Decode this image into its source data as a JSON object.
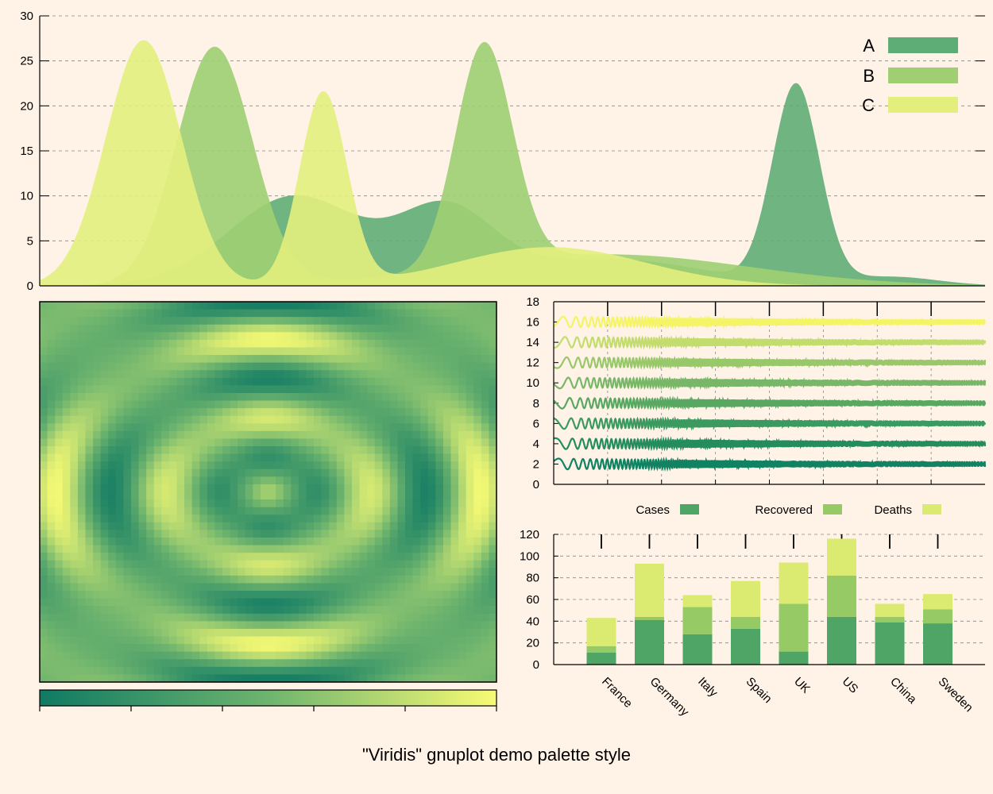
{
  "figure": {
    "title": "\"Viridis\" gnuplot demo palette style",
    "background": "#fff2e6"
  },
  "chart_data": [
    {
      "type": "area",
      "ylim": [
        0,
        30
      ],
      "yticks": [
        0,
        5,
        10,
        15,
        20,
        25,
        30
      ],
      "grid": true,
      "legend_position": "top-right",
      "series": [
        {
          "name": "A",
          "color": "#5fad76",
          "components": [
            {
              "mu": 0.27,
              "sigma": 0.07,
              "amp": 10
            },
            {
              "mu": 0.43,
              "sigma": 0.05,
              "amp": 8
            },
            {
              "mu": 0.6,
              "sigma": 0.1,
              "amp": 3
            },
            {
              "mu": 0.8,
              "sigma": 0.025,
              "amp": 22
            },
            {
              "mu": 0.9,
              "sigma": 0.05,
              "amp": 1
            }
          ]
        },
        {
          "name": "B",
          "color": "#9fcf72",
          "components": [
            {
              "mu": 0.185,
              "sigma": 0.04,
              "amp": 26.5
            },
            {
              "mu": 0.47,
              "sigma": 0.03,
              "amp": 24.7
            },
            {
              "mu": 0.6,
              "sigma": 0.15,
              "amp": 3.5
            }
          ]
        },
        {
          "name": "C",
          "color": "#e3ef7d",
          "components": [
            {
              "mu": 0.11,
              "sigma": 0.04,
              "amp": 27.3
            },
            {
              "mu": 0.3,
              "sigma": 0.025,
              "amp": 21.4
            },
            {
              "mu": 0.54,
              "sigma": 0.1,
              "amp": 4.3
            }
          ]
        }
      ]
    },
    {
      "type": "heatmap",
      "description": "radial ripple pattern z = cos(k*r), colors from dark teal to yellow",
      "colorbar": {
        "low_color": "#0f7a63",
        "high_color": "#f8fb74"
      }
    },
    {
      "type": "line",
      "ylim": [
        0,
        18
      ],
      "yticks": [
        0,
        2,
        4,
        6,
        8,
        10,
        12,
        14,
        16,
        18
      ],
      "grid": true,
      "series": [
        {
          "offset": 2,
          "color": "#118363"
        },
        {
          "offset": 4,
          "color": "#248d5e"
        },
        {
          "offset": 6,
          "color": "#3a9a60"
        },
        {
          "offset": 8,
          "color": "#58a862"
        },
        {
          "offset": 10,
          "color": "#77b767"
        },
        {
          "offset": 12,
          "color": "#98c86a"
        },
        {
          "offset": 14,
          "color": "#c2dd6d"
        },
        {
          "offset": 16,
          "color": "#f3f466"
        }
      ]
    },
    {
      "type": "bar",
      "stacked": true,
      "ylim": [
        0,
        120
      ],
      "yticks": [
        0,
        20,
        40,
        60,
        80,
        100,
        120
      ],
      "grid": true,
      "legend_position": "top",
      "categories": [
        "France",
        "Germany",
        "Italy",
        "Spain",
        "UK",
        "US",
        "China",
        "Sweden"
      ],
      "series": [
        {
          "name": "Cases",
          "color": "#4ea566",
          "values": [
            11,
            41,
            28,
            33,
            12,
            44,
            39,
            38
          ]
        },
        {
          "name": "Recovered",
          "color": "#95ca65",
          "values": [
            6,
            3,
            25,
            11,
            44,
            38,
            5,
            13
          ]
        },
        {
          "name": "Deaths",
          "color": "#dbeb71",
          "values": [
            26,
            49,
            11,
            33,
            38,
            34,
            12,
            14
          ]
        }
      ]
    }
  ]
}
